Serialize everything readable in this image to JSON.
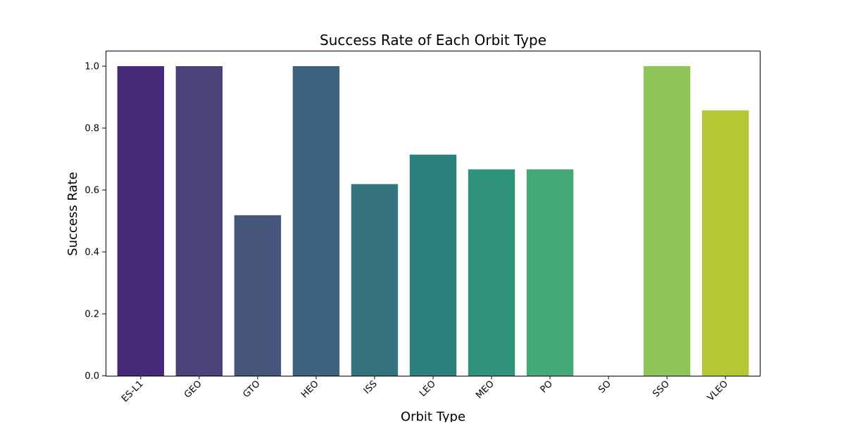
{
  "chart_data": {
    "type": "bar",
    "title": "Success Rate of Each Orbit Type",
    "xlabel": "Orbit Type",
    "ylabel": "Success Rate",
    "categories": [
      "ES-L1",
      "GEO",
      "GTO",
      "HEO",
      "ISS",
      "LEO",
      "MEO",
      "PO",
      "SO",
      "SSO",
      "VLEO"
    ],
    "values": [
      1.0,
      1.0,
      0.5185,
      1.0,
      0.619,
      0.7143,
      0.6667,
      0.6667,
      0.0,
      1.0,
      0.8571
    ],
    "colors": [
      "#482878",
      "#4a4278",
      "#45557c",
      "#3d647e",
      "#35747f",
      "#2d817d",
      "#2f937c",
      "#44a877",
      "#79c45b",
      "#8fc558",
      "#b6c736"
    ],
    "ylim": [
      0,
      1.05
    ],
    "yticks": [
      0.0,
      0.2,
      0.4,
      0.6,
      0.8,
      1.0
    ],
    "ytick_labels": [
      "0.0",
      "0.2",
      "0.4",
      "0.6",
      "0.8",
      "1.0"
    ],
    "grid": false,
    "legend": "none"
  }
}
